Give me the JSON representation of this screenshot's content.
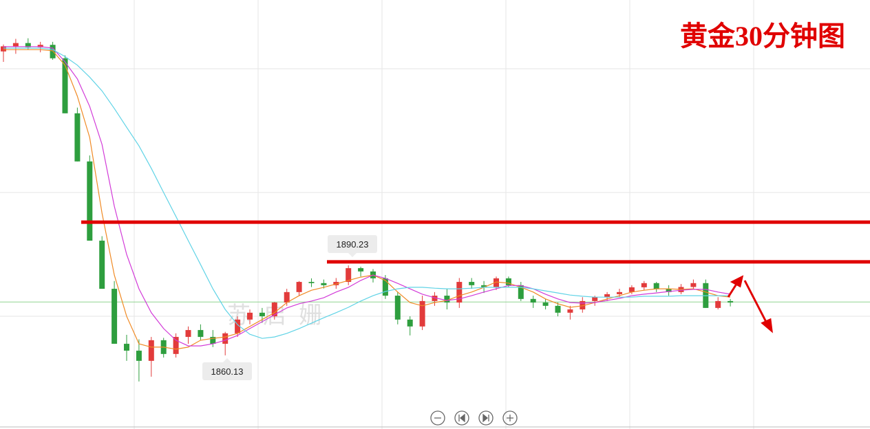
{
  "chart_data": {
    "type": "candlestick",
    "title": "黄金30分钟图",
    "watermark": "苏启姗",
    "up_color": "#e23b3b",
    "down_color": "#2e9e3e",
    "ylim": [
      1835.5,
      1979.0
    ],
    "candles": [
      [
        1961.8,
        1964.1,
        1958.3,
        1963.5
      ],
      [
        1963.5,
        1966.0,
        1961.0,
        1964.6
      ],
      [
        1964.6,
        1966.2,
        1962.5,
        1963.2
      ],
      [
        1963.2,
        1965.0,
        1961.5,
        1964.0
      ],
      [
        1964.0,
        1965.0,
        1959.0,
        1959.5
      ],
      [
        1959.5,
        1960.5,
        1941.1,
        1941.1
      ],
      [
        1941.1,
        1943.0,
        1925.0,
        1925.0
      ],
      [
        1925.0,
        1927.0,
        1898.5,
        1898.5
      ],
      [
        1898.5,
        1900.0,
        1882.4,
        1882.4
      ],
      [
        1882.4,
        1885.0,
        1864.0,
        1864.0
      ],
      [
        1864.0,
        1867.0,
        1858.3,
        1861.7
      ],
      [
        1861.7,
        1865.5,
        1851.4,
        1858.3
      ],
      [
        1858.3,
        1866.3,
        1853.0,
        1865.2
      ],
      [
        1865.2,
        1866.0,
        1859.4,
        1860.6
      ],
      [
        1860.6,
        1867.5,
        1859.4,
        1866.3
      ],
      [
        1866.3,
        1869.8,
        1864.0,
        1868.6
      ],
      [
        1868.6,
        1870.5,
        1865.2,
        1866.3
      ],
      [
        1866.3,
        1868.6,
        1862.9,
        1864.0
      ],
      [
        1864.0,
        1868.0,
        1860.13,
        1867.5
      ],
      [
        1867.5,
        1873.2,
        1866.3,
        1872.1
      ],
      [
        1872.1,
        1875.5,
        1870.5,
        1874.4
      ],
      [
        1874.4,
        1876.0,
        1871.0,
        1873.2
      ],
      [
        1873.2,
        1878.0,
        1872.1,
        1877.8
      ],
      [
        1877.8,
        1882.4,
        1876.7,
        1881.3
      ],
      [
        1881.3,
        1885.0,
        1880.1,
        1884.7
      ],
      [
        1884.7,
        1885.9,
        1883.0,
        1884.3
      ],
      [
        1884.3,
        1885.5,
        1882.5,
        1883.6
      ],
      [
        1883.6,
        1886.0,
        1882.4,
        1884.7
      ],
      [
        1884.7,
        1890.23,
        1883.6,
        1889.3
      ],
      [
        1889.3,
        1889.8,
        1886.5,
        1888.2
      ],
      [
        1888.2,
        1889.0,
        1884.5,
        1885.9
      ],
      [
        1885.9,
        1887.0,
        1879.0,
        1880.1
      ],
      [
        1880.1,
        1881.3,
        1870.5,
        1872.1
      ],
      [
        1872.1,
        1873.2,
        1866.8,
        1869.8
      ],
      [
        1869.8,
        1880.1,
        1868.6,
        1878.3
      ],
      [
        1878.3,
        1881.3,
        1876.7,
        1880.1
      ],
      [
        1880.1,
        1882.4,
        1875.5,
        1877.8
      ],
      [
        1877.8,
        1886.0,
        1876.0,
        1884.7
      ],
      [
        1884.7,
        1886.0,
        1882.4,
        1883.6
      ],
      [
        1883.6,
        1885.0,
        1881.0,
        1882.9
      ],
      [
        1882.9,
        1886.5,
        1882.0,
        1885.9
      ],
      [
        1885.9,
        1886.5,
        1883.0,
        1883.6
      ],
      [
        1883.6,
        1884.7,
        1878.3,
        1879.0
      ],
      [
        1879.0,
        1880.1,
        1876.0,
        1877.8
      ],
      [
        1877.8,
        1879.0,
        1875.5,
        1876.7
      ],
      [
        1876.7,
        1877.8,
        1873.2,
        1874.4
      ],
      [
        1874.4,
        1876.7,
        1872.1,
        1875.5
      ],
      [
        1875.5,
        1879.6,
        1874.4,
        1878.3
      ],
      [
        1878.3,
        1880.1,
        1876.7,
        1879.6
      ],
      [
        1879.6,
        1881.3,
        1878.3,
        1880.6
      ],
      [
        1880.6,
        1882.4,
        1879.6,
        1881.3
      ],
      [
        1881.3,
        1883.6,
        1880.6,
        1882.9
      ],
      [
        1882.9,
        1885.0,
        1882.0,
        1884.3
      ],
      [
        1884.3,
        1884.7,
        1881.3,
        1882.4
      ],
      [
        1882.4,
        1883.6,
        1880.1,
        1881.3
      ],
      [
        1881.3,
        1884.0,
        1880.6,
        1883.0
      ],
      [
        1883.0,
        1885.5,
        1882.4,
        1884.3
      ],
      [
        1884.3,
        1885.5,
        1876.0,
        1876.0
      ],
      [
        1876.0,
        1879.6,
        1875.5,
        1878.3
      ],
      [
        1878.3,
        1879.0,
        1876.5,
        1877.8
      ]
    ],
    "ma": [
      {
        "color": "#f08a24",
        "values": [
          1962.4,
          1962.4,
          1962.4,
          1962.4,
          1962.0,
          1957.2,
          1946.8,
          1933.0,
          1907.7,
          1887.0,
          1873.2,
          1864.0,
          1862.9,
          1862.9,
          1862.2,
          1862.9,
          1865.2,
          1865.8,
          1866.3,
          1867.5,
          1869.8,
          1872.1,
          1874.4,
          1877.8,
          1880.1,
          1881.9,
          1882.9,
          1884.0,
          1885.2,
          1886.3,
          1887.0,
          1885.2,
          1881.3,
          1877.8,
          1876.7,
          1877.8,
          1878.5,
          1880.1,
          1881.3,
          1882.9,
          1884.7,
          1884.3,
          1882.9,
          1881.3,
          1879.0,
          1877.4,
          1876.2,
          1876.7,
          1877.8,
          1879.0,
          1880.1,
          1881.3,
          1881.9,
          1882.4,
          1882.4,
          1882.2,
          1882.4,
          1881.3,
          1880.1,
          1879.6
        ]
      },
      {
        "color": "#d23ad8",
        "values": [
          1963.4,
          1963.4,
          1963.4,
          1963.4,
          1962.9,
          1958.3,
          1952.6,
          1943.4,
          1930.7,
          1910.0,
          1893.9,
          1882.4,
          1874.4,
          1869.1,
          1865.2,
          1863.3,
          1863.3,
          1864.0,
          1865.2,
          1866.8,
          1869.1,
          1871.4,
          1873.7,
          1876.0,
          1877.4,
          1878.3,
          1879.4,
          1881.3,
          1882.9,
          1885.2,
          1887.0,
          1885.9,
          1884.2,
          1882.4,
          1880.6,
          1879.4,
          1878.5,
          1879.0,
          1880.1,
          1881.3,
          1882.4,
          1883.5,
          1883.5,
          1882.4,
          1880.6,
          1879.0,
          1877.8,
          1877.6,
          1877.8,
          1878.5,
          1879.2,
          1880.1,
          1880.6,
          1881.0,
          1881.5,
          1881.9,
          1882.2,
          1882.2,
          1881.3,
          1880.6
        ]
      },
      {
        "color": "#5fd3e6",
        "values": [
          1962.9,
          1962.9,
          1962.9,
          1962.9,
          1962.4,
          1960.1,
          1957.2,
          1953.2,
          1948.6,
          1942.7,
          1936.4,
          1930.2,
          1922.7,
          1914.6,
          1906.6,
          1898.5,
          1890.5,
          1882.4,
          1875.5,
          1870.4,
          1867.2,
          1865.8,
          1866.3,
          1867.5,
          1869.1,
          1870.9,
          1872.7,
          1874.4,
          1876.2,
          1878.3,
          1880.1,
          1881.5,
          1882.4,
          1882.9,
          1882.9,
          1882.6,
          1882.4,
          1882.4,
          1882.6,
          1882.9,
          1882.9,
          1882.9,
          1882.9,
          1882.4,
          1881.7,
          1881.0,
          1880.3,
          1879.9,
          1879.6,
          1879.6,
          1879.6,
          1879.6,
          1879.9,
          1879.9,
          1879.9,
          1880.1,
          1880.1,
          1880.1,
          1880.1,
          1880.1
        ]
      }
    ],
    "levels": [
      {
        "value": 1904.7,
        "color": "#e00000"
      },
      {
        "value": 1891.4,
        "color": "#e00000"
      }
    ],
    "last_price": {
      "value": 1878.0,
      "color": "#8fd48f"
    },
    "grid": true
  }
}
